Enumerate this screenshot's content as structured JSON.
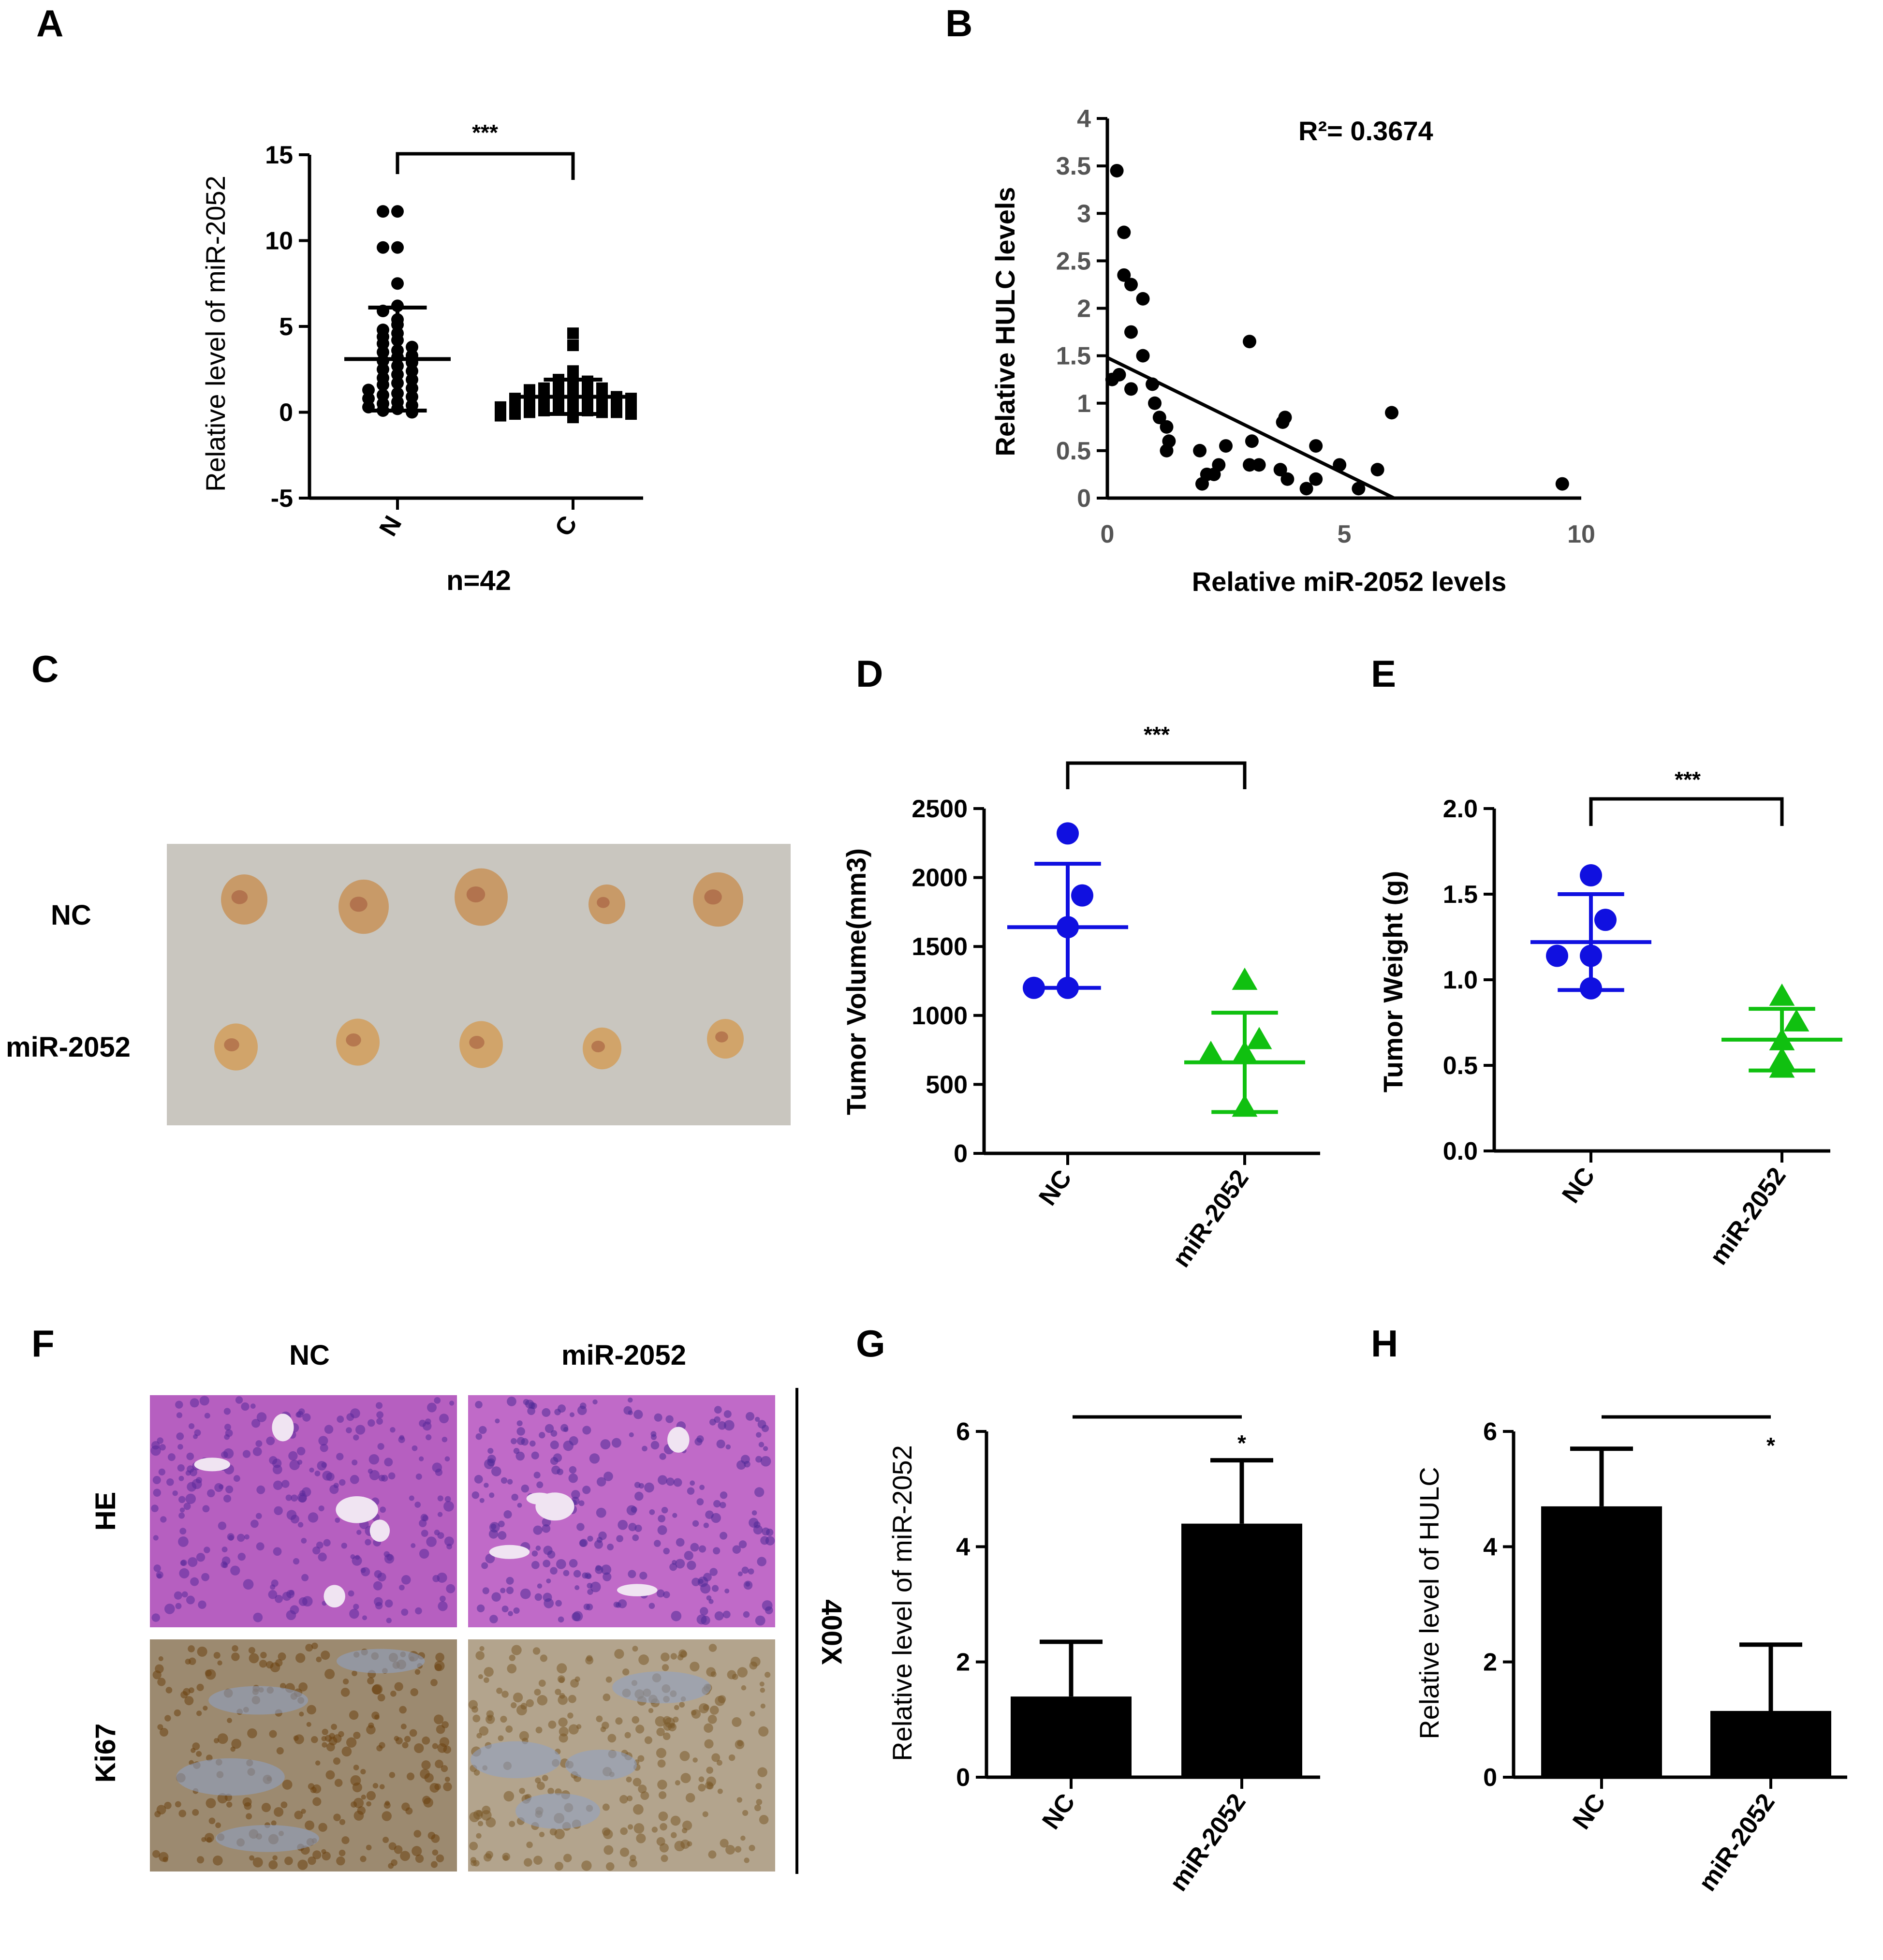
{
  "panels": {
    "A": {
      "label": "A",
      "sig": "***",
      "n_label": "n=42"
    },
    "B": {
      "label": "B",
      "r2_label": "R²= 0.3674"
    },
    "C": {
      "label": "C",
      "row_labels": [
        "NC",
        "miR-2052"
      ]
    },
    "D": {
      "label": "D",
      "sig": "***"
    },
    "E": {
      "label": "E",
      "sig": "***"
    },
    "F": {
      "label": "F",
      "col_labels": [
        "NC",
        "miR-2052"
      ],
      "row_labels": [
        "HE",
        "Ki67"
      ],
      "magnification": "400X"
    },
    "G": {
      "label": "G",
      "sig": "*"
    },
    "H": {
      "label": "H",
      "sig": "*"
    }
  },
  "chart_data": [
    {
      "panel": "A",
      "type": "scatter",
      "ylabel": "Relative level of miR-2052",
      "xlabel": "n=42",
      "categories": [
        "N",
        "C"
      ],
      "ylim": [
        -5,
        15
      ],
      "yticks": [
        -5,
        0,
        5,
        10,
        15
      ],
      "mean": [
        3.1,
        0.9
      ],
      "sd_upper": [
        6.1,
        1.9
      ],
      "sd_lower": [
        0.1,
        -0.1
      ],
      "series": [
        {
          "name": "N",
          "marker": "circle",
          "values": [
            11.7,
            11.7,
            9.6,
            9.6,
            7.5,
            6.2,
            5.9,
            5.4,
            5.1,
            4.8,
            4.6,
            4.4,
            4.2,
            4.0,
            3.8,
            3.6,
            3.5,
            3.3,
            3.2,
            3.0,
            2.9,
            2.7,
            2.5,
            2.4,
            2.2,
            2.0,
            1.9,
            1.7,
            1.6,
            1.4,
            1.3,
            1.1,
            1.0,
            0.9,
            0.8,
            0.6,
            0.5,
            0.4,
            0.3,
            0.2,
            0.1,
            0.0
          ]
        },
        {
          "name": "C",
          "marker": "square",
          "values": [
            4.6,
            3.9,
            2.4,
            2.1,
            1.9,
            1.8,
            1.7,
            1.6,
            1.5,
            1.4,
            1.4,
            1.3,
            1.2,
            1.1,
            1.1,
            1.0,
            1.0,
            0.9,
            0.9,
            0.8,
            0.8,
            0.7,
            0.7,
            0.6,
            0.6,
            0.5,
            0.5,
            0.4,
            0.4,
            0.3,
            0.3,
            0.2,
            0.2,
            0.1,
            0.1,
            0.0,
            0.0,
            0.0,
            -0.1,
            -0.1,
            -0.2,
            -0.3
          ]
        }
      ]
    },
    {
      "panel": "B",
      "type": "scatter",
      "xlabel": "Relative miR-2052 levels",
      "ylabel": "Relative HULC levels",
      "xlim": [
        0,
        10
      ],
      "ylim": [
        0,
        4
      ],
      "xticks": [
        0,
        5,
        10
      ],
      "yticks": [
        0,
        0.5,
        1,
        1.5,
        2,
        2.5,
        3,
        3.5,
        4
      ],
      "ytick_labels": [
        "0",
        "0.5",
        "1",
        "1.5",
        "2",
        "2.5",
        "3",
        "3.5",
        "4"
      ],
      "points": [
        [
          0.2,
          3.45
        ],
        [
          0.35,
          2.8
        ],
        [
          0.35,
          2.35
        ],
        [
          0.5,
          2.25
        ],
        [
          0.75,
          2.1
        ],
        [
          0.5,
          1.75
        ],
        [
          0.75,
          1.5
        ],
        [
          0.1,
          1.25
        ],
        [
          0.25,
          1.3
        ],
        [
          0.5,
          1.15
        ],
        [
          0.95,
          1.2
        ],
        [
          1.0,
          1.0
        ],
        [
          1.1,
          0.85
        ],
        [
          1.25,
          0.75
        ],
        [
          1.3,
          0.6
        ],
        [
          1.25,
          0.5
        ],
        [
          1.95,
          0.5
        ],
        [
          2.1,
          0.25
        ],
        [
          2.25,
          0.25
        ],
        [
          2.35,
          0.35
        ],
        [
          2.5,
          0.55
        ],
        [
          2.0,
          0.15
        ],
        [
          3.0,
          1.65
        ],
        [
          3.05,
          0.6
        ],
        [
          3.0,
          0.35
        ],
        [
          3.2,
          0.35
        ],
        [
          3.7,
          0.8
        ],
        [
          3.75,
          0.85
        ],
        [
          3.65,
          0.3
        ],
        [
          3.8,
          0.2
        ],
        [
          4.2,
          0.1
        ],
        [
          4.4,
          0.2
        ],
        [
          4.4,
          0.55
        ],
        [
          4.9,
          0.35
        ],
        [
          5.3,
          0.1
        ],
        [
          5.7,
          0.3
        ],
        [
          6.0,
          0.9
        ],
        [
          9.6,
          0.15
        ]
      ],
      "fit": {
        "x": [
          0,
          6.05
        ],
        "y": [
          1.48,
          0
        ]
      }
    },
    {
      "panel": "D",
      "type": "scatter",
      "ylabel": "Tumor Volume(mm3)",
      "categories": [
        "NC",
        "miR-2052"
      ],
      "ylim": [
        0,
        2500
      ],
      "yticks": [
        0,
        500,
        1000,
        1500,
        2000,
        2500
      ],
      "mean": [
        1640,
        660
      ],
      "sd_upper": [
        2100,
        1020
      ],
      "sd_lower": [
        1200,
        300
      ],
      "series": [
        {
          "name": "NC",
          "marker": "circle",
          "color": "#1010e0",
          "values": [
            2320,
            1870,
            1640,
            1200,
            1200
          ]
        },
        {
          "name": "miR-2052",
          "marker": "triangle",
          "color": "#10c010",
          "values": [
            1250,
            820,
            720,
            720,
            330
          ]
        }
      ]
    },
    {
      "panel": "E",
      "type": "scatter",
      "ylabel": "Tumor Weight (g)",
      "categories": [
        "NC",
        "miR-2052"
      ],
      "ylim": [
        0,
        2.0
      ],
      "yticks": [
        0,
        0.5,
        1.0,
        1.5,
        2.0
      ],
      "ytick_labels": [
        "0.0",
        "0.5",
        "1.0",
        "1.5",
        "2.0"
      ],
      "mean": [
        1.22,
        0.65
      ],
      "sd_upper": [
        1.5,
        0.83
      ],
      "sd_lower": [
        0.94,
        0.47
      ],
      "series": [
        {
          "name": "NC",
          "marker": "circle",
          "color": "#1010e0",
          "values": [
            1.61,
            1.35,
            1.14,
            1.14,
            0.95
          ]
        },
        {
          "name": "miR-2052",
          "marker": "triangle",
          "color": "#10c010",
          "values": [
            0.9,
            0.75,
            0.64,
            0.53,
            0.48
          ]
        }
      ]
    },
    {
      "panel": "G",
      "type": "bar",
      "ylabel": "Relative level of miR-2052",
      "categories": [
        "NC",
        "miR-2052"
      ],
      "values": [
        1.4,
        4.4
      ],
      "error_upper": [
        2.35,
        5.5
      ],
      "ylim": [
        0,
        6
      ],
      "yticks": [
        0,
        2,
        4,
        6
      ]
    },
    {
      "panel": "H",
      "type": "bar",
      "ylabel": "Relative level of HULC",
      "categories": [
        "NC",
        "miR-2052"
      ],
      "values": [
        4.7,
        1.15
      ],
      "error_upper": [
        5.7,
        2.3
      ],
      "ylim": [
        0,
        6
      ],
      "yticks": [
        0,
        2,
        4,
        6
      ]
    }
  ],
  "colors": {
    "axis": "#000000",
    "nc": "#1010e0",
    "mir": "#10c010",
    "bar": "#000000"
  }
}
